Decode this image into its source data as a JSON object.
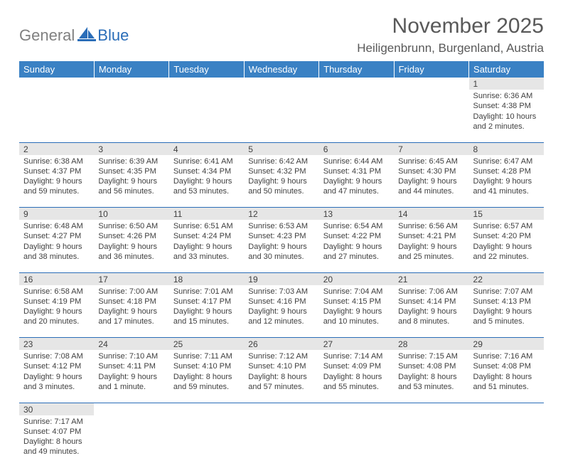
{
  "logo": {
    "textGray": "General",
    "textBlue": "Blue"
  },
  "title": "November 2025",
  "location": "Heiligenbrunn, Burgenland, Austria",
  "colors": {
    "headerBg": "#3a81c4",
    "headerText": "#ffffff",
    "dayNumBg": "#e6e6e6",
    "cellBorder": "#2a6db8",
    "text": "#404040",
    "titleText": "#595959",
    "logoGray": "#808080",
    "logoBlue": "#2a6db8",
    "bg": "#ffffff"
  },
  "daysOfWeek": [
    "Sunday",
    "Monday",
    "Tuesday",
    "Wednesday",
    "Thursday",
    "Friday",
    "Saturday"
  ],
  "weeks": [
    [
      null,
      null,
      null,
      null,
      null,
      null,
      {
        "n": "1",
        "sr": "Sunrise: 6:36 AM",
        "ss": "Sunset: 4:38 PM",
        "dl": "Daylight: 10 hours and 2 minutes."
      }
    ],
    [
      {
        "n": "2",
        "sr": "Sunrise: 6:38 AM",
        "ss": "Sunset: 4:37 PM",
        "dl": "Daylight: 9 hours and 59 minutes."
      },
      {
        "n": "3",
        "sr": "Sunrise: 6:39 AM",
        "ss": "Sunset: 4:35 PM",
        "dl": "Daylight: 9 hours and 56 minutes."
      },
      {
        "n": "4",
        "sr": "Sunrise: 6:41 AM",
        "ss": "Sunset: 4:34 PM",
        "dl": "Daylight: 9 hours and 53 minutes."
      },
      {
        "n": "5",
        "sr": "Sunrise: 6:42 AM",
        "ss": "Sunset: 4:32 PM",
        "dl": "Daylight: 9 hours and 50 minutes."
      },
      {
        "n": "6",
        "sr": "Sunrise: 6:44 AM",
        "ss": "Sunset: 4:31 PM",
        "dl": "Daylight: 9 hours and 47 minutes."
      },
      {
        "n": "7",
        "sr": "Sunrise: 6:45 AM",
        "ss": "Sunset: 4:30 PM",
        "dl": "Daylight: 9 hours and 44 minutes."
      },
      {
        "n": "8",
        "sr": "Sunrise: 6:47 AM",
        "ss": "Sunset: 4:28 PM",
        "dl": "Daylight: 9 hours and 41 minutes."
      }
    ],
    [
      {
        "n": "9",
        "sr": "Sunrise: 6:48 AM",
        "ss": "Sunset: 4:27 PM",
        "dl": "Daylight: 9 hours and 38 minutes."
      },
      {
        "n": "10",
        "sr": "Sunrise: 6:50 AM",
        "ss": "Sunset: 4:26 PM",
        "dl": "Daylight: 9 hours and 36 minutes."
      },
      {
        "n": "11",
        "sr": "Sunrise: 6:51 AM",
        "ss": "Sunset: 4:24 PM",
        "dl": "Daylight: 9 hours and 33 minutes."
      },
      {
        "n": "12",
        "sr": "Sunrise: 6:53 AM",
        "ss": "Sunset: 4:23 PM",
        "dl": "Daylight: 9 hours and 30 minutes."
      },
      {
        "n": "13",
        "sr": "Sunrise: 6:54 AM",
        "ss": "Sunset: 4:22 PM",
        "dl": "Daylight: 9 hours and 27 minutes."
      },
      {
        "n": "14",
        "sr": "Sunrise: 6:56 AM",
        "ss": "Sunset: 4:21 PM",
        "dl": "Daylight: 9 hours and 25 minutes."
      },
      {
        "n": "15",
        "sr": "Sunrise: 6:57 AM",
        "ss": "Sunset: 4:20 PM",
        "dl": "Daylight: 9 hours and 22 minutes."
      }
    ],
    [
      {
        "n": "16",
        "sr": "Sunrise: 6:58 AM",
        "ss": "Sunset: 4:19 PM",
        "dl": "Daylight: 9 hours and 20 minutes."
      },
      {
        "n": "17",
        "sr": "Sunrise: 7:00 AM",
        "ss": "Sunset: 4:18 PM",
        "dl": "Daylight: 9 hours and 17 minutes."
      },
      {
        "n": "18",
        "sr": "Sunrise: 7:01 AM",
        "ss": "Sunset: 4:17 PM",
        "dl": "Daylight: 9 hours and 15 minutes."
      },
      {
        "n": "19",
        "sr": "Sunrise: 7:03 AM",
        "ss": "Sunset: 4:16 PM",
        "dl": "Daylight: 9 hours and 12 minutes."
      },
      {
        "n": "20",
        "sr": "Sunrise: 7:04 AM",
        "ss": "Sunset: 4:15 PM",
        "dl": "Daylight: 9 hours and 10 minutes."
      },
      {
        "n": "21",
        "sr": "Sunrise: 7:06 AM",
        "ss": "Sunset: 4:14 PM",
        "dl": "Daylight: 9 hours and 8 minutes."
      },
      {
        "n": "22",
        "sr": "Sunrise: 7:07 AM",
        "ss": "Sunset: 4:13 PM",
        "dl": "Daylight: 9 hours and 5 minutes."
      }
    ],
    [
      {
        "n": "23",
        "sr": "Sunrise: 7:08 AM",
        "ss": "Sunset: 4:12 PM",
        "dl": "Daylight: 9 hours and 3 minutes."
      },
      {
        "n": "24",
        "sr": "Sunrise: 7:10 AM",
        "ss": "Sunset: 4:11 PM",
        "dl": "Daylight: 9 hours and 1 minute."
      },
      {
        "n": "25",
        "sr": "Sunrise: 7:11 AM",
        "ss": "Sunset: 4:10 PM",
        "dl": "Daylight: 8 hours and 59 minutes."
      },
      {
        "n": "26",
        "sr": "Sunrise: 7:12 AM",
        "ss": "Sunset: 4:10 PM",
        "dl": "Daylight: 8 hours and 57 minutes."
      },
      {
        "n": "27",
        "sr": "Sunrise: 7:14 AM",
        "ss": "Sunset: 4:09 PM",
        "dl": "Daylight: 8 hours and 55 minutes."
      },
      {
        "n": "28",
        "sr": "Sunrise: 7:15 AM",
        "ss": "Sunset: 4:08 PM",
        "dl": "Daylight: 8 hours and 53 minutes."
      },
      {
        "n": "29",
        "sr": "Sunrise: 7:16 AM",
        "ss": "Sunset: 4:08 PM",
        "dl": "Daylight: 8 hours and 51 minutes."
      }
    ],
    [
      {
        "n": "30",
        "sr": "Sunrise: 7:17 AM",
        "ss": "Sunset: 4:07 PM",
        "dl": "Daylight: 8 hours and 49 minutes."
      },
      null,
      null,
      null,
      null,
      null,
      null
    ]
  ]
}
